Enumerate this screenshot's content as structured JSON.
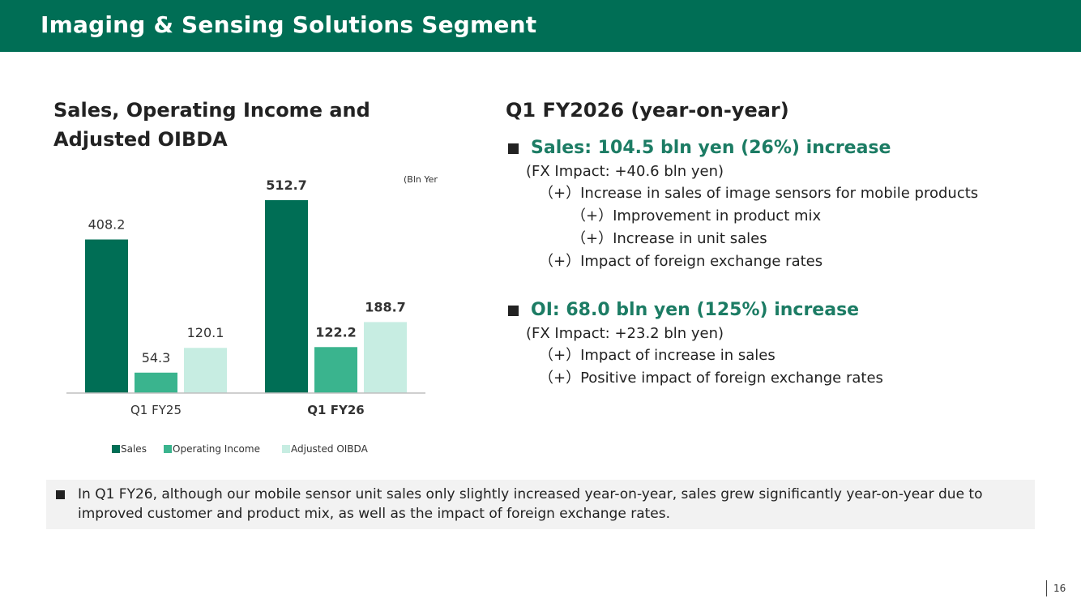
{
  "header": {
    "title": "Imaging & Sensing Solutions Segment"
  },
  "chart_title": "Sales, Operating Income and Adjusted OIBDA",
  "chart_data": {
    "type": "bar",
    "categories": [
      "Q1 FY25",
      "Q1 FY26"
    ],
    "series": [
      {
        "name": "Sales",
        "values": [
          408.2,
          512.7
        ],
        "color": "#006e55"
      },
      {
        "name": "Operating Income",
        "values": [
          54.3,
          122.2
        ],
        "color": "#3ab48e"
      },
      {
        "name": "Adjusted OIBDA",
        "values": [
          120.1,
          188.7
        ],
        "color": "#c7ede2"
      }
    ],
    "value_labels": [
      [
        "408.2",
        "54.3",
        "120.1"
      ],
      [
        "512.7",
        "122.2",
        "188.7"
      ]
    ],
    "unit_label": "(Bln Yen)",
    "bold_category": "Q1 FY26",
    "legend_position": "bottom",
    "grid": false,
    "ylim": [
      0,
      550
    ]
  },
  "yoy": {
    "title": "Q1 FY2026 (year-on-year)",
    "sales": {
      "headline": "Sales: 104.5 bln yen (26%) increase",
      "fx": "(FX Impact: +40.6 bln yen)",
      "items": [
        {
          "text": "（+）Increase in sales of image sensors for mobile products",
          "level": 1
        },
        {
          "text": "（+）Improvement in product mix",
          "level": 2
        },
        {
          "text": "（+）Increase in unit sales",
          "level": 2
        },
        {
          "text": "（+）Impact of foreign exchange rates",
          "level": 1
        }
      ]
    },
    "oi": {
      "headline": "OI: 68.0 bln yen (125%) increase",
      "fx": "(FX Impact: +23.2 bln yen)",
      "items": [
        {
          "text": "（+）Impact of increase in sales",
          "level": 1
        },
        {
          "text": "（+）Positive impact of foreign exchange rates",
          "level": 1
        }
      ]
    }
  },
  "note": {
    "text": "In Q1 FY26, although our mobile sensor unit sales only slightly increased year-on-year, sales grew significantly year-on-year due to improved customer and product mix, as well as the impact of foreign exchange rates."
  },
  "page_number": "16"
}
